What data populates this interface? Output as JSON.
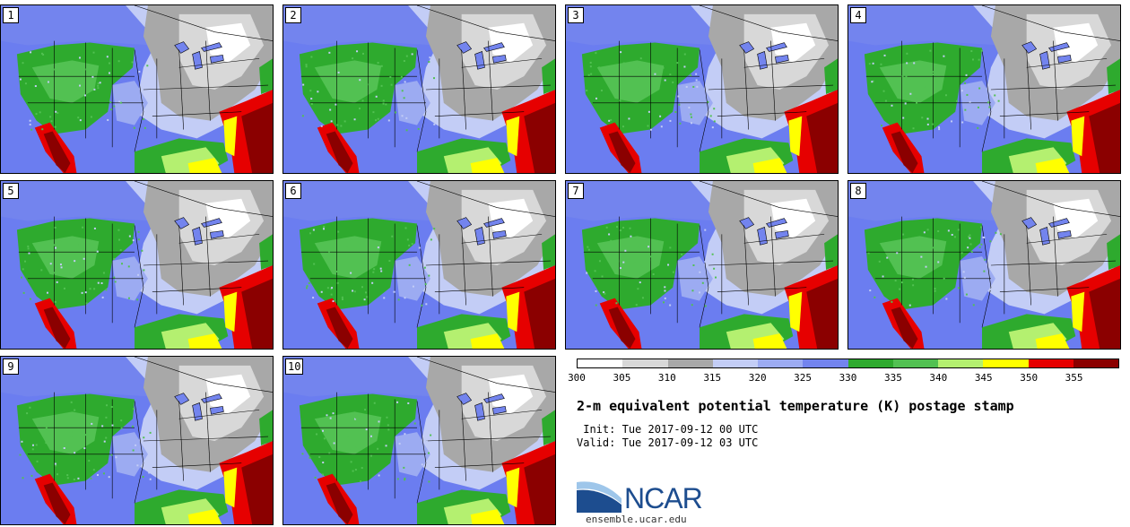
{
  "figure": {
    "title": "2-m equivalent potential temperature (K) postage stamp",
    "init_label": " Init:",
    "init_time": "Tue 2017-09-12 00 UTC",
    "valid_label": "Valid:",
    "valid_time": "Tue 2017-09-12 03 UTC"
  },
  "panels": [
    "1",
    "2",
    "3",
    "4",
    "5",
    "6",
    "7",
    "8",
    "9",
    "10"
  ],
  "legend": {
    "unit": "K",
    "ticks": [
      "300",
      "305",
      "310",
      "315",
      "320",
      "325",
      "330",
      "335",
      "340",
      "345",
      "350",
      "355"
    ],
    "colors": [
      "#ffffff",
      "#d8d8d8",
      "#a8a8a8",
      "#c3cdf6",
      "#9cabf2",
      "#7384ee",
      "#2eaa2e",
      "#52c152",
      "#b4f070",
      "#ffff00",
      "#e60000",
      "#8b0000"
    ]
  },
  "logo": {
    "name": "NCAR",
    "url": "ensemble.ucar.edu",
    "color": "#1d4d8f"
  }
}
